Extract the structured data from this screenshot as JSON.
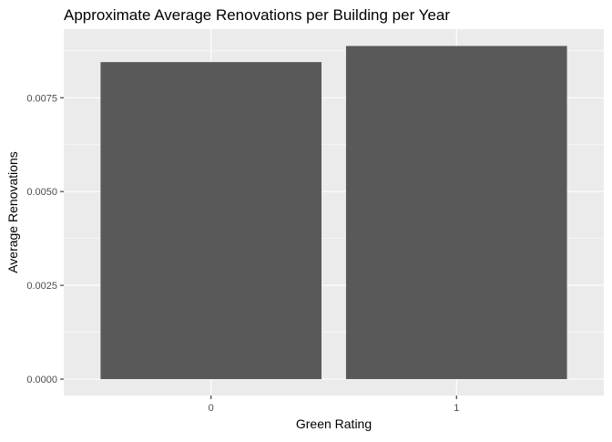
{
  "chart_data": {
    "type": "bar",
    "title": "Approximate Average Renovations per Building per Year",
    "xlabel": "Green Rating",
    "ylabel": "Average Renovations",
    "categories": [
      "0",
      "1"
    ],
    "values": [
      0.00845,
      0.00888
    ],
    "ylim": [
      -0.000437,
      0.009328
    ],
    "yticks": [
      0.0,
      0.0025,
      0.005,
      0.0075
    ],
    "ytick_labels": [
      "0.0000",
      "0.0025",
      "0.0050",
      "0.0075"
    ],
    "grid": true,
    "legend": "none"
  },
  "colors": {
    "panel_background": "#ebebeb",
    "grid_major": "#ffffff",
    "bar_fill": "#595959",
    "tick_mark": "#333333"
  }
}
